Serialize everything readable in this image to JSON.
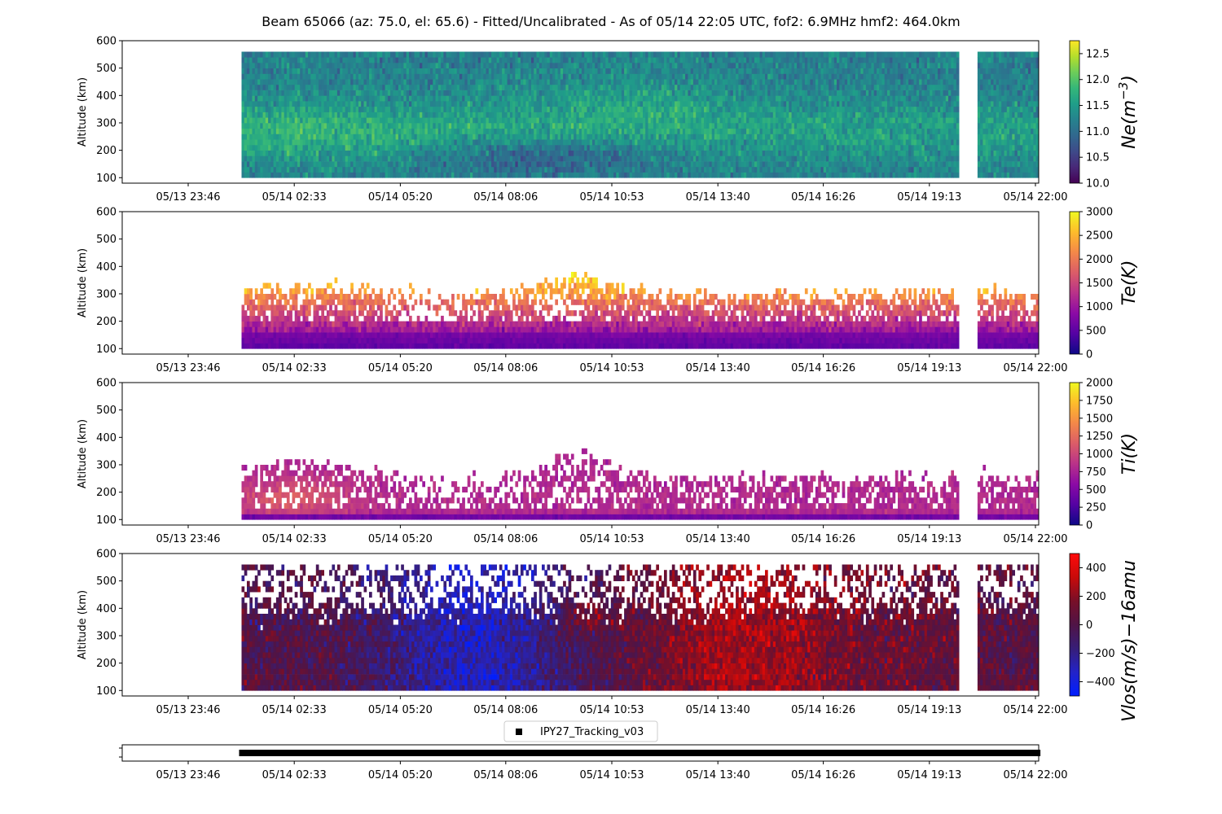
{
  "title": "Beam 65066 (az: 75.0, el: 65.6) - Fitted/Uncalibrated - As of 05/14 22:05 UTC, fof2: 6.9MHz  hmf2: 464.0km",
  "x_ticks": [
    "05/13 23:46",
    "05/14 02:33",
    "05/14 05:20",
    "05/14 08:06",
    "05/14 10:53",
    "05/14 13:40",
    "05/14 16:26",
    "05/14 19:13",
    "05/14 22:00"
  ],
  "chart_data": [
    {
      "type": "heatmap",
      "title": "",
      "ylabel": "Altitude (km)",
      "ylim": [
        80,
        600
      ],
      "y_ticks": [
        100,
        200,
        300,
        400,
        500,
        600
      ],
      "data_x_range": [
        "05/14 01:10",
        "05/14 22:05"
      ],
      "data_y_range": [
        100,
        560
      ],
      "colorbar": {
        "label": "Ne(m^-3)",
        "label_main": "Ne(m",
        "label_sup": "−3",
        "label_tail": ")",
        "colormap": "viridis",
        "range": [
          10.0,
          12.75
        ],
        "ticks": [
          "10.0",
          "10.5",
          "11.0",
          "11.5",
          "12.0",
          "12.5"
        ],
        "tick_values": [
          10.0,
          10.5,
          11.0,
          11.5,
          12.0,
          12.5
        ]
      },
      "gaps": [
        "05/14 20:00",
        "05/14 20:25"
      ]
    },
    {
      "type": "heatmap",
      "title": "",
      "ylabel": "Altitude (km)",
      "ylim": [
        80,
        600
      ],
      "y_ticks": [
        100,
        200,
        300,
        400,
        500,
        600
      ],
      "data_x_range": [
        "05/14 01:10",
        "05/14 22:05"
      ],
      "data_y_range": [
        100,
        380
      ],
      "colorbar": {
        "label": "Te(K)",
        "colormap": "plasma",
        "range": [
          0,
          3000
        ],
        "ticks": [
          "0",
          "500",
          "1000",
          "1500",
          "2000",
          "2500",
          "3000"
        ],
        "tick_values": [
          0,
          500,
          1000,
          1500,
          2000,
          2500,
          3000
        ]
      },
      "gaps": [
        "05/14 20:00",
        "05/14 20:25"
      ]
    },
    {
      "type": "heatmap",
      "title": "",
      "ylabel": "Altitude (km)",
      "ylim": [
        80,
        600
      ],
      "y_ticks": [
        100,
        200,
        300,
        400,
        500,
        600
      ],
      "data_x_range": [
        "05/14 01:10",
        "05/14 22:05"
      ],
      "data_y_range": [
        100,
        360
      ],
      "colorbar": {
        "label": "Ti(K)",
        "colormap": "plasma",
        "range": [
          0,
          2000
        ],
        "ticks": [
          "0",
          "250",
          "500",
          "750",
          "1000",
          "1250",
          "1500",
          "1750",
          "2000"
        ],
        "tick_values": [
          0,
          250,
          500,
          750,
          1000,
          1250,
          1500,
          1750,
          2000
        ]
      },
      "gaps": [
        "05/14 20:00",
        "05/14 20:25"
      ]
    },
    {
      "type": "heatmap",
      "title": "",
      "ylabel": "Altitude (km)",
      "ylim": [
        80,
        600
      ],
      "y_ticks": [
        100,
        200,
        300,
        400,
        500,
        600
      ],
      "data_x_range": [
        "05/14 01:10",
        "05/14 22:05"
      ],
      "data_y_range": [
        100,
        560
      ],
      "colorbar": {
        "label": "Vlos(m/s)−16amu",
        "colormap": "blue-red",
        "range": [
          -500,
          500
        ],
        "ticks": [
          "−400",
          "−200",
          "0",
          "200",
          "400"
        ],
        "tick_values": [
          -400,
          -200,
          0,
          200,
          400
        ]
      },
      "gaps": [
        "05/14 20:00",
        "05/14 20:25"
      ]
    },
    {
      "type": "scatter",
      "title": "",
      "legend": {
        "entries": [
          "IPY27_Tracking_v03"
        ],
        "placement": "top-center"
      },
      "series": [
        {
          "name": "IPY27_Tracking_v03",
          "x_range": [
            "05/14 01:10",
            "05/14 22:05"
          ],
          "marker": "square",
          "color": "#000000"
        }
      ]
    }
  ]
}
